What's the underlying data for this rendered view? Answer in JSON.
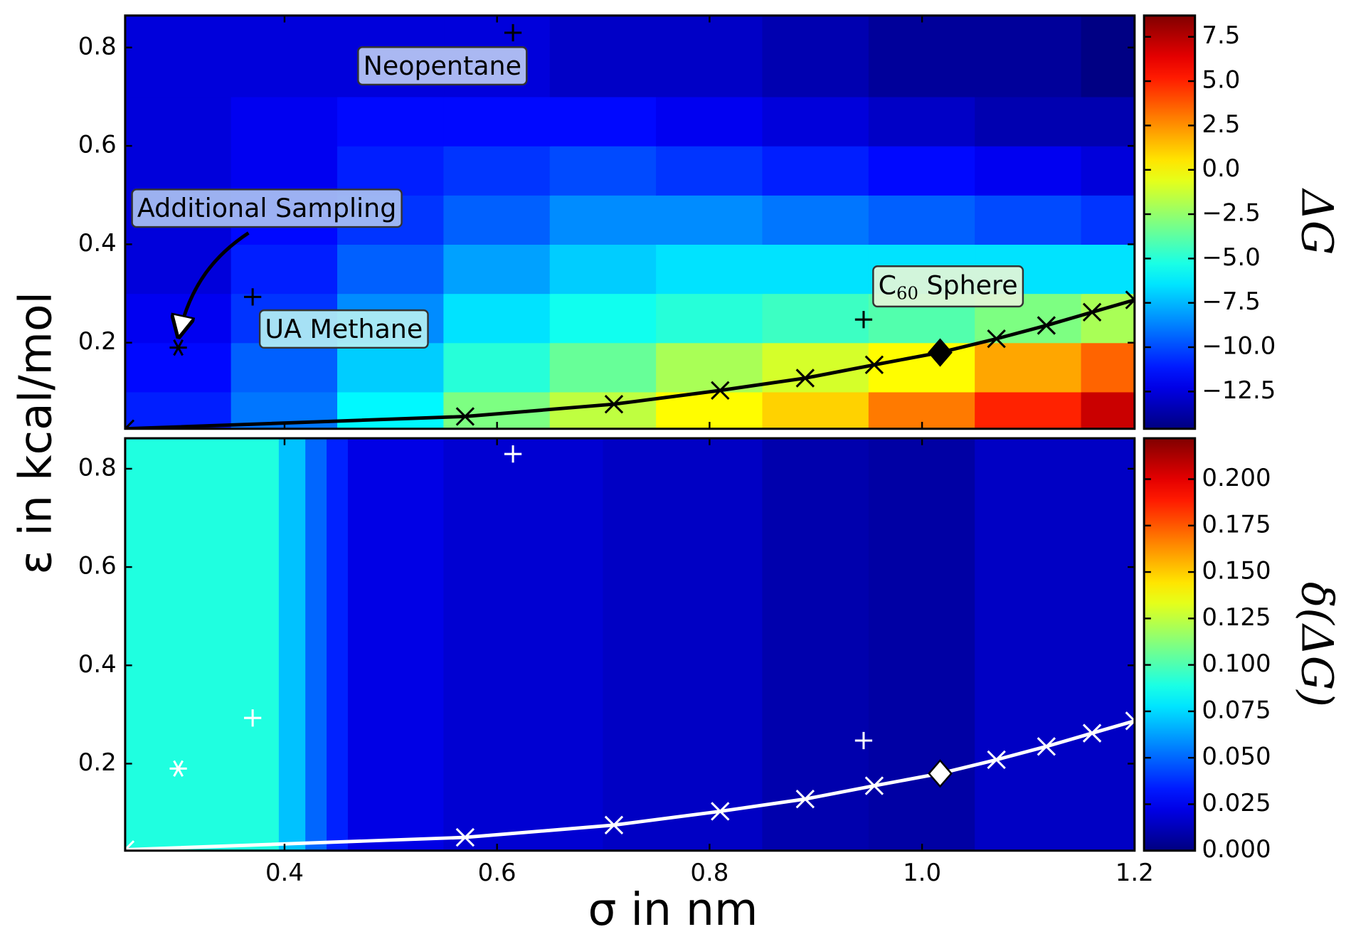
{
  "chart_data": [
    {
      "type": "heatmap",
      "ylabel": "ε in kcal/mol",
      "colorbar_label": "ΔG",
      "x_edges": [
        0.25,
        0.35,
        0.45,
        0.55,
        0.65,
        0.75,
        0.85,
        0.95,
        1.05,
        1.15,
        1.2
      ],
      "y_edges": [
        0.025,
        0.1,
        0.2,
        0.3,
        0.4,
        0.5,
        0.6,
        0.7,
        0.865
      ],
      "z": [
        [
          -11,
          -9,
          -6,
          -3,
          -1.5,
          0,
          1,
          3,
          5,
          7
        ],
        [
          -11.5,
          -9.5,
          -7,
          -5,
          -3.5,
          -2,
          -1,
          0,
          2,
          3.5
        ],
        [
          -12,
          -10.5,
          -8.5,
          -6.5,
          -5.5,
          -5,
          -4.5,
          -4,
          -3,
          -2
        ],
        [
          -12.5,
          -11,
          -9.5,
          -8,
          -7,
          -6.5,
          -6.5,
          -6.5,
          -6.5,
          -6.5
        ],
        [
          -12.5,
          -11.5,
          -10.5,
          -9.5,
          -8.5,
          -8.5,
          -9,
          -9.5,
          -10,
          -10.5
        ],
        [
          -12.5,
          -12,
          -11,
          -10.5,
          -10,
          -10.5,
          -11,
          -11.5,
          -12,
          -12.5
        ],
        [
          -12.5,
          -12,
          -11.5,
          -11.5,
          -11.5,
          -12,
          -12.5,
          -13,
          -13.5,
          -13.5
        ],
        [
          -12.5,
          -12.5,
          -12.5,
          -12.5,
          -13,
          -13,
          -13.5,
          -14,
          -14,
          -14.5
        ]
      ],
      "colormap": "jet",
      "zlim": [
        -14.6,
        8.7
      ],
      "zticks": [
        {
          "value": -12.5,
          "label": "−12.5"
        },
        {
          "value": -10,
          "label": "−10.0"
        },
        {
          "value": -7.5,
          "label": "−7.5"
        },
        {
          "value": -5,
          "label": "−5.0"
        },
        {
          "value": -2.5,
          "label": "−2.5"
        },
        {
          "value": 0,
          "label": "0.0"
        },
        2.5,
        {
          "value": 5,
          "label": "5.0"
        },
        7.5
      ],
      "xlim": [
        0.25,
        1.2
      ],
      "ylim": [
        0.025,
        0.865
      ],
      "xticks": [
        0.4,
        0.6,
        0.8,
        1.0,
        1.2
      ],
      "yticks": [
        0.2,
        0.4,
        0.6,
        0.8
      ],
      "series": [
        {
          "marker": "line",
          "color": "#000000",
          "x": [
            0.25,
            0.57,
            0.71,
            0.81,
            0.89,
            0.955,
            1.017,
            1.07,
            1.117,
            1.16,
            1.2
          ],
          "values": [
            0.025,
            0.05,
            0.075,
            0.103,
            0.128,
            0.155,
            0.18,
            0.208,
            0.235,
            0.262,
            0.287
          ]
        },
        {
          "marker": "x",
          "color": "#000000",
          "x": [
            0.25,
            0.57,
            0.71,
            0.81,
            0.89,
            0.955,
            1.07,
            1.117,
            1.16,
            1.2
          ],
          "values": [
            0.025,
            0.05,
            0.075,
            0.103,
            0.128,
            0.155,
            0.208,
            0.235,
            0.262,
            0.287
          ]
        },
        {
          "marker": "diamond",
          "color": "#000000",
          "edgecolor": "#000000",
          "x": [
            1.017
          ],
          "values": [
            0.18
          ]
        },
        {
          "marker": "plus",
          "color": "#000000",
          "x": [
            0.615,
            0.37,
            0.945
          ],
          "values": [
            0.83,
            0.293,
            0.247
          ]
        },
        {
          "marker": "asterisk",
          "color": "#000000",
          "x": [
            0.3
          ],
          "values": [
            0.19
          ]
        }
      ],
      "annotations": [
        "Neopentane",
        "Additional Sampling",
        "UA Methane",
        {
          "text": "C",
          "subscript": "60",
          "suffix": " Sphere"
        }
      ]
    },
    {
      "type": "heatmap",
      "xlabel": "σ in nm",
      "colorbar_label": "δ(ΔG)",
      "x_edges": [
        0.25,
        0.395,
        0.42,
        0.44,
        0.46,
        0.55,
        0.7,
        0.85,
        0.95,
        1.05,
        1.2
      ],
      "y_edges": [
        0.023,
        0.862
      ],
      "z": [
        [
          0.09,
          0.07,
          0.05,
          0.035,
          0.022,
          0.018,
          0.015,
          0.01,
          0.008,
          0.015
        ]
      ],
      "colormap": "jet",
      "zlim": [
        0,
        0.222
      ],
      "zticks": [
        {
          "value": 0,
          "label": "0.000"
        },
        0.025,
        {
          "value": 0.05,
          "label": "0.050"
        },
        0.075,
        {
          "value": 0.1,
          "label": "0.100"
        },
        0.125,
        {
          "value": 0.15,
          "label": "0.150"
        },
        0.175,
        {
          "value": 0.2,
          "label": "0.200"
        }
      ],
      "xlim": [
        0.25,
        1.2
      ],
      "ylim": [
        0.023,
        0.862
      ],
      "xticks": [
        {
          "value": 0.4,
          "label": "0.4"
        },
        0.6,
        0.8,
        {
          "value": 1.0,
          "label": "1.0"
        },
        1.2
      ],
      "yticks": [
        0.2,
        0.4,
        0.6,
        0.8
      ],
      "series": [
        {
          "marker": "line",
          "color": "#ffffff",
          "x": [
            0.25,
            0.57,
            0.71,
            0.81,
            0.89,
            0.955,
            1.017,
            1.07,
            1.117,
            1.16,
            1.2
          ],
          "values": [
            0.025,
            0.05,
            0.075,
            0.103,
            0.128,
            0.155,
            0.18,
            0.208,
            0.235,
            0.262,
            0.287
          ]
        },
        {
          "marker": "x",
          "color": "#ffffff",
          "x": [
            0.25,
            0.57,
            0.71,
            0.81,
            0.89,
            0.955,
            1.07,
            1.117,
            1.16,
            1.2
          ],
          "values": [
            0.025,
            0.05,
            0.075,
            0.103,
            0.128,
            0.155,
            0.208,
            0.235,
            0.262,
            0.287
          ]
        },
        {
          "marker": "diamond",
          "color": "#ffffff",
          "edgecolor": "#000000",
          "x": [
            1.017
          ],
          "values": [
            0.18
          ]
        },
        {
          "marker": "plus",
          "color": "#ffffff",
          "x": [
            0.615,
            0.37,
            0.945
          ],
          "values": [
            0.83,
            0.293,
            0.247
          ]
        },
        {
          "marker": "asterisk",
          "color": "#ffffff",
          "x": [
            0.3
          ],
          "values": [
            0.19
          ]
        }
      ]
    }
  ]
}
